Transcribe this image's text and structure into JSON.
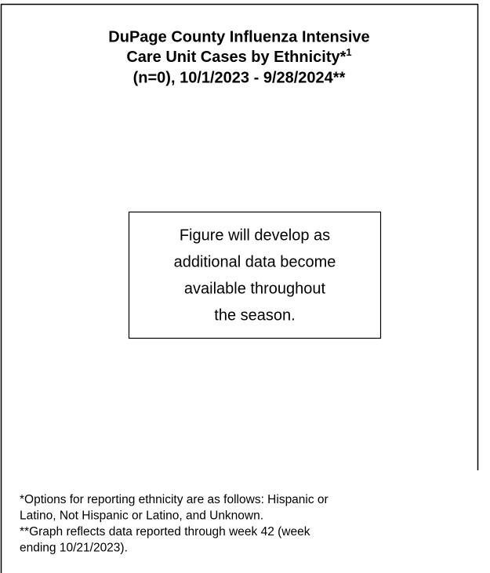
{
  "title": {
    "lines": [
      "DuPage County Influenza Intensive",
      "Care Unit Cases by Ethnicity*",
      "(n=0), 10/1/2023 - 9/28/2024**"
    ],
    "superscript": "1"
  },
  "placeholder": {
    "lines": [
      "Figure will develop as",
      "additional data become",
      "available throughout",
      "the season."
    ]
  },
  "footnotes": [
    {
      "lines": [
        "*Options for reporting ethnicity are as follows: Hispanic or",
        "Latino, Not Hispanic or Latino, and Unknown."
      ]
    },
    {
      "lines": [
        "**Graph reflects data reported through week 42 (week",
        "ending 10/21/2023)."
      ]
    }
  ]
}
